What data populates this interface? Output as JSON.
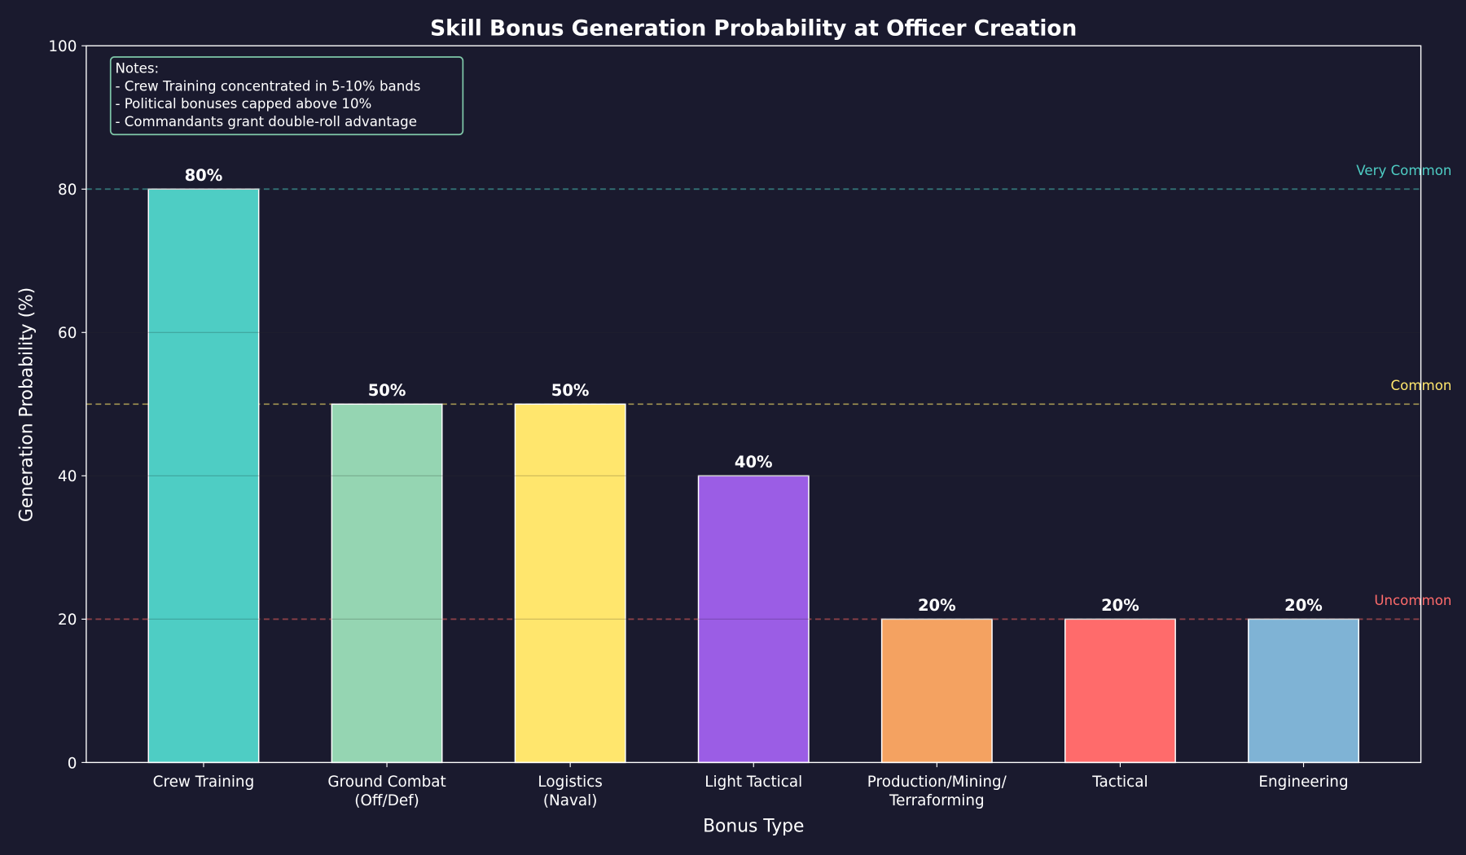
{
  "chart_data": {
    "type": "bar",
    "title": "Skill Bonus Generation Probability at Officer Creation",
    "xlabel": "Bonus Type",
    "ylabel": "Generation Probability (%)",
    "ylim": [
      0,
      100
    ],
    "yticks": [
      0,
      20,
      40,
      60,
      80,
      100
    ],
    "grid": true,
    "categories": [
      [
        "Crew Training"
      ],
      [
        "Ground Combat",
        "(Off/Def)"
      ],
      [
        "Logistics",
        "(Naval)"
      ],
      [
        "Light Tactical"
      ],
      [
        "Production/Mining/",
        "Terraforming"
      ],
      [
        "Tactical"
      ],
      [
        "Engineering"
      ]
    ],
    "values": [
      80,
      50,
      50,
      40,
      20,
      20,
      20
    ],
    "data_labels": [
      "80%",
      "50%",
      "50%",
      "40%",
      "20%",
      "20%",
      "20%"
    ],
    "colors": [
      "#4ecdc4",
      "#95d5b2",
      "#ffe66d",
      "#9b5de5",
      "#f4a261",
      "#ff6b6b",
      "#7fb3d5"
    ],
    "reference_lines": [
      {
        "value": 80,
        "label": "Very Common",
        "color": "#4ecdc4"
      },
      {
        "value": 50,
        "label": "Common",
        "color": "#ffe66d"
      },
      {
        "value": 20,
        "label": "Uncommon",
        "color": "#ff6b6b"
      }
    ],
    "notes": [
      "Notes:",
      "- Crew Training concentrated in 5-10% bands",
      "- Political bonuses capped above 10%",
      "- Commandants grant double-roll advantage"
    ],
    "background": "#1a1a2e"
  }
}
